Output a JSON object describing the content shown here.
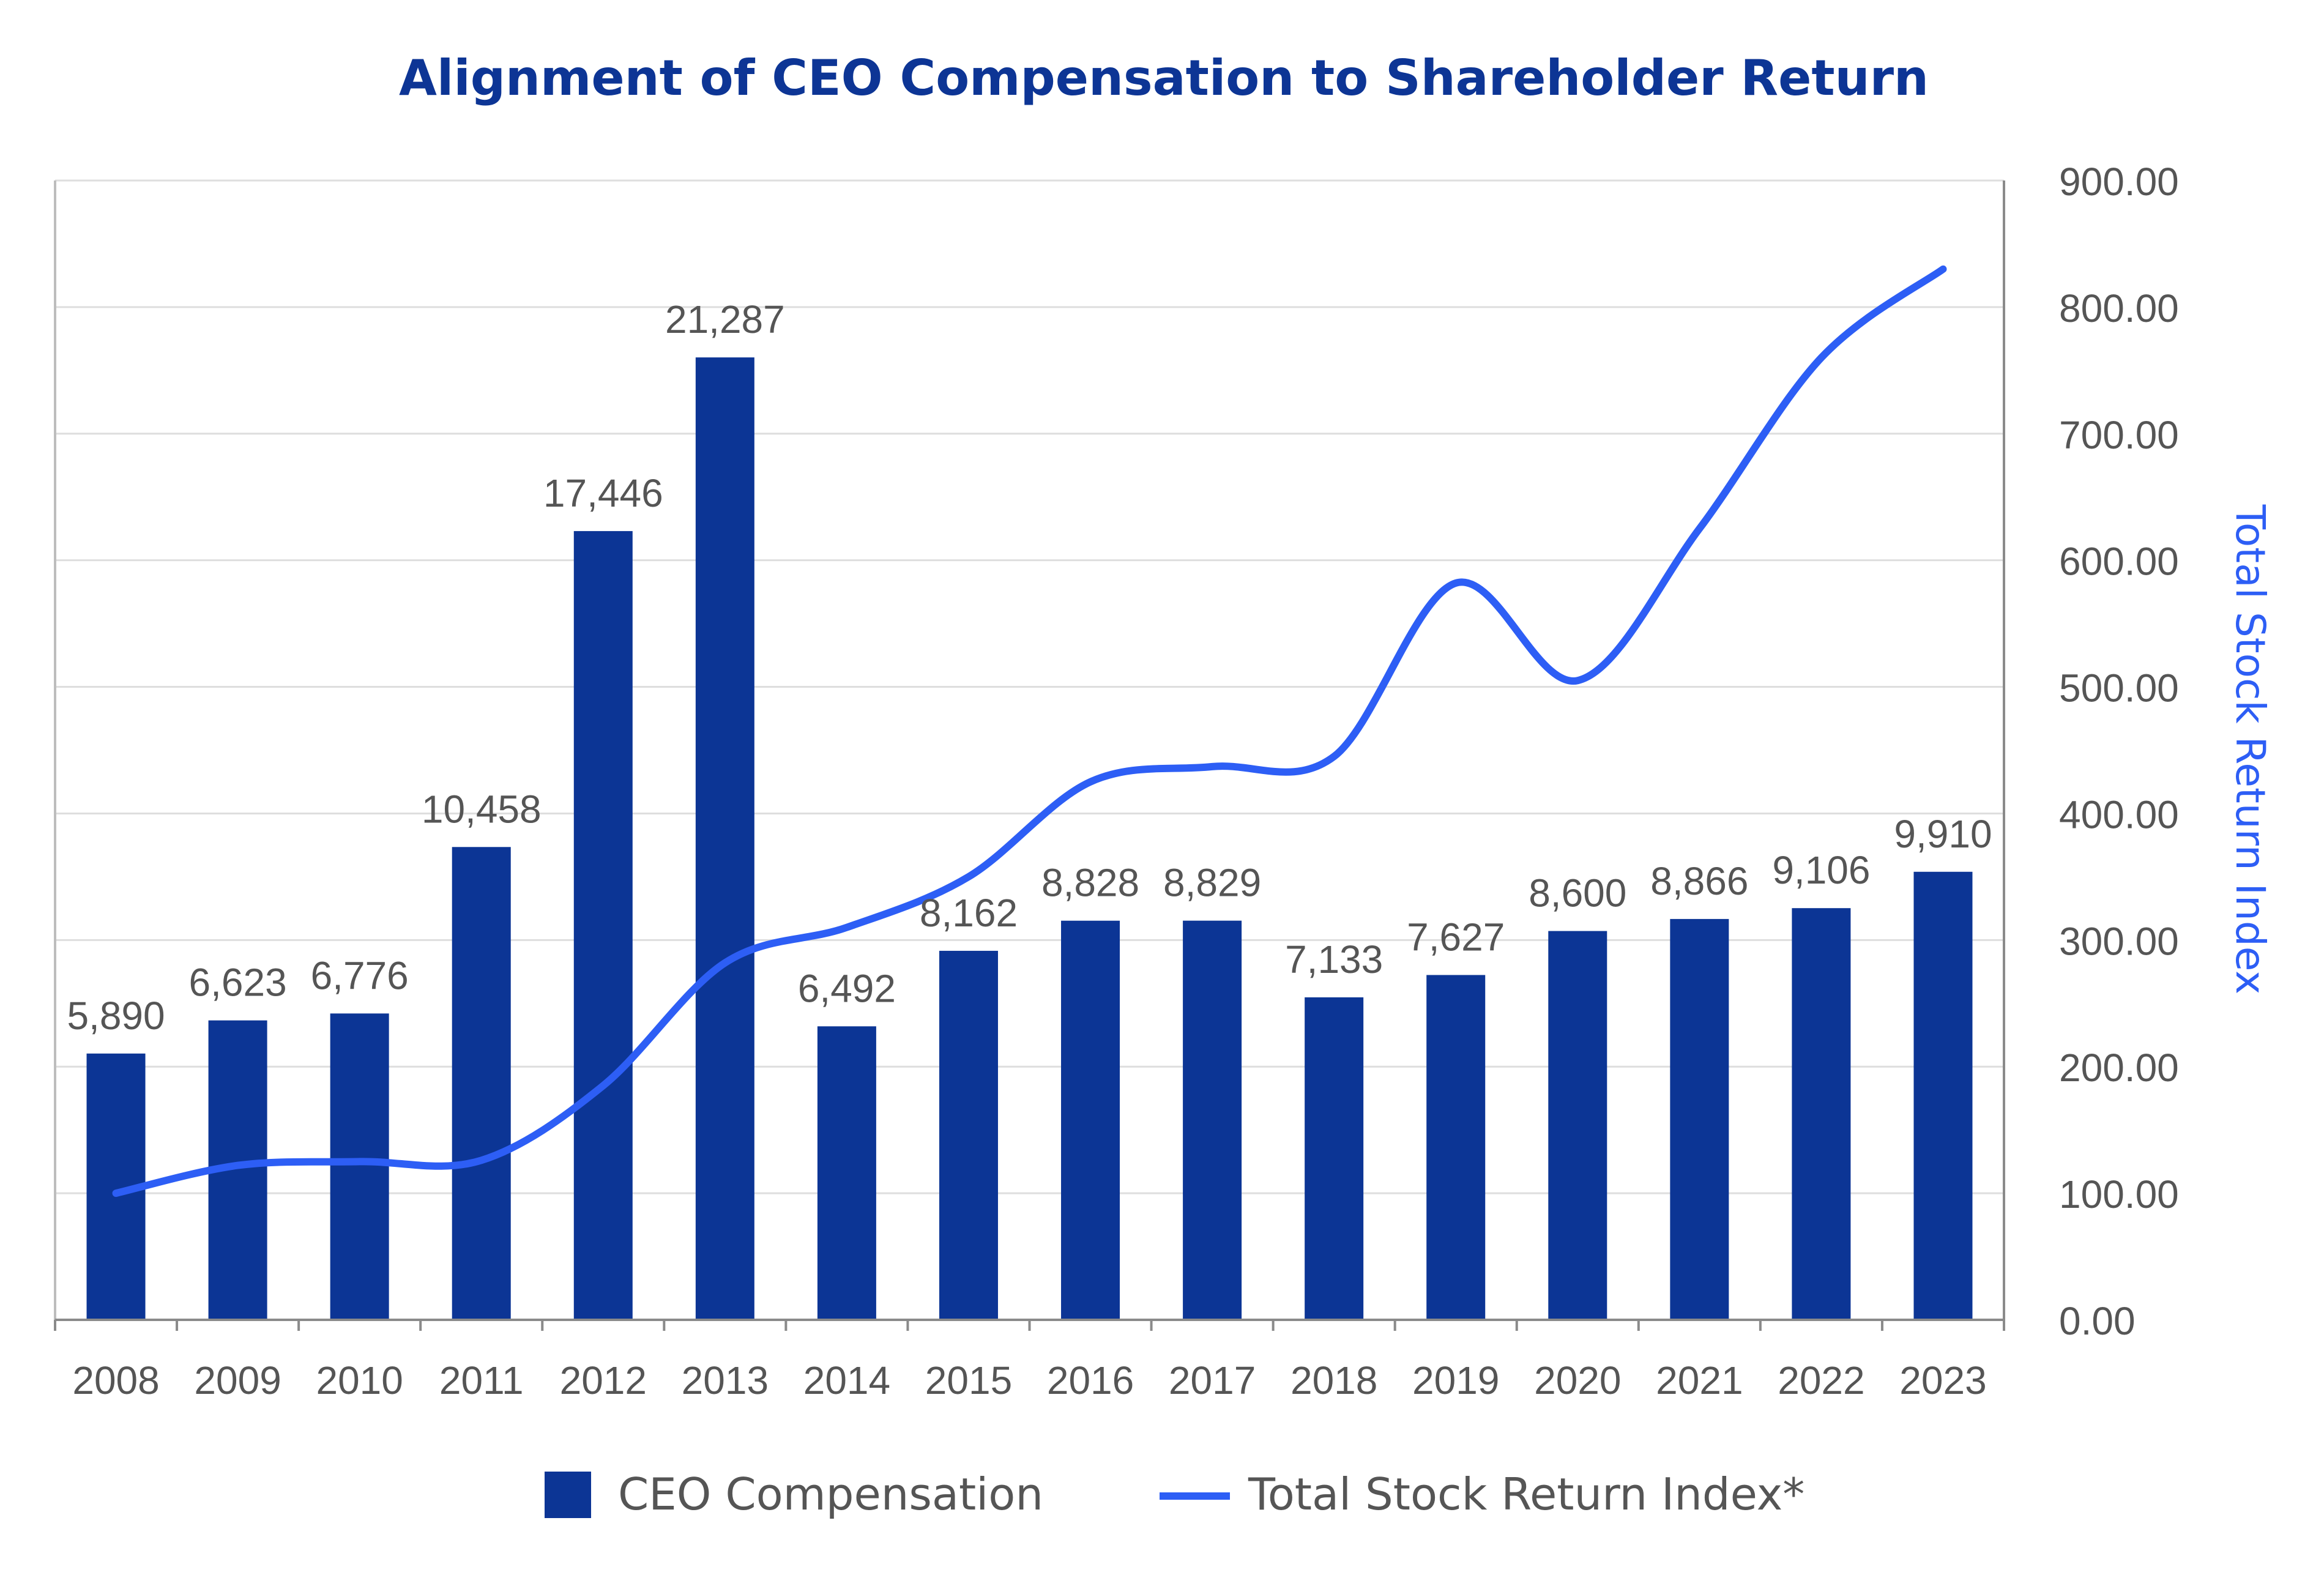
{
  "chart_data": {
    "type": "bar",
    "title": "Alignment of CEO Compensation to Shareholder Return",
    "categories": [
      "2008",
      "2009",
      "2010",
      "2011",
      "2012",
      "2013",
      "2014",
      "2015",
      "2016",
      "2017",
      "2018",
      "2019",
      "2020",
      "2021",
      "2022",
      "2023"
    ],
    "series": [
      {
        "name": "CEO Compensation",
        "type": "bar",
        "axis": "left",
        "values": [
          5890,
          6623,
          6776,
          10458,
          17446,
          21287,
          6492,
          8162,
          8828,
          8829,
          7133,
          7627,
          8600,
          8866,
          9106,
          9910
        ],
        "labels": [
          "5,890",
          "6,623",
          "6,776",
          "10,458",
          "17,446",
          "21,287",
          "6,492",
          "8,162",
          "8,828",
          "8,829",
          "7,133",
          "7,627",
          "8,600",
          "8,866",
          "9,106",
          "9,910"
        ],
        "color": "#0c3595"
      },
      {
        "name": "Total Stock Return Index*",
        "type": "line",
        "axis": "right",
        "values": [
          100,
          122,
          125,
          126,
          185,
          282,
          310,
          350,
          425,
          437,
          445,
          582,
          505,
          625,
          760,
          830
        ],
        "color": "#2d5ef5"
      }
    ],
    "left_axis": {
      "ylim": [
        0,
        25200
      ],
      "ticks_shown": false
    },
    "right_axis": {
      "label": "Total Stock Return Index",
      "ylim": [
        0,
        900
      ],
      "ticks": [
        0,
        100,
        200,
        300,
        400,
        500,
        600,
        700,
        800,
        900
      ],
      "tick_labels": [
        "0.00",
        "100.00",
        "200.00",
        "300.00",
        "400.00",
        "500.00",
        "600.00",
        "700.00",
        "800.00",
        "900.00"
      ],
      "color": "#2d5ef5"
    },
    "grid": true,
    "legend": {
      "position": "bottom-center",
      "items": [
        {
          "label": "CEO Compensation",
          "marker": "square"
        },
        {
          "label": "Total Stock Return Index*",
          "marker": "line"
        }
      ]
    }
  }
}
